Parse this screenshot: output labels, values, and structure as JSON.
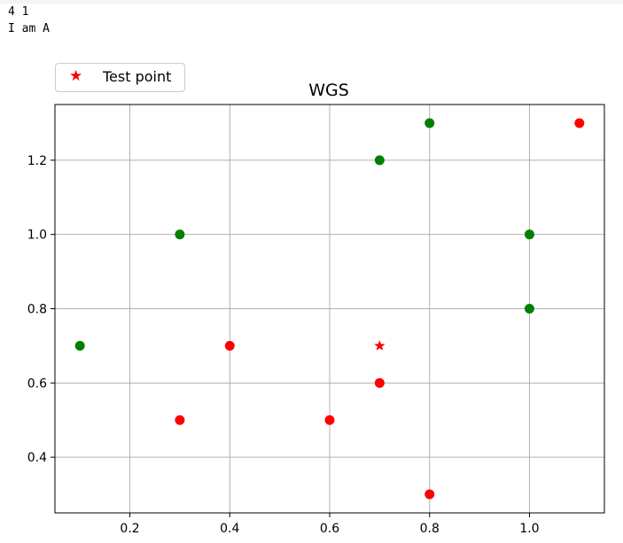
{
  "console": {
    "lines": [
      "4 1",
      "I am A"
    ]
  },
  "legend": {
    "entries": [
      {
        "label": "Test point",
        "marker": "star",
        "color": "#ff0000"
      }
    ]
  },
  "colors": {
    "green": "#008000",
    "red": "#ff0000",
    "grid": "#b0b0b0"
  },
  "chart_data": {
    "type": "scatter",
    "title": "WGS",
    "xlabel": "",
    "ylabel": "",
    "xlim": [
      0.05,
      1.15
    ],
    "ylim": [
      0.25,
      1.35
    ],
    "xticks": [
      0.2,
      0.4,
      0.6,
      0.8,
      1.0
    ],
    "xtick_labels": [
      "0.2",
      "0.4",
      "0.6",
      "0.8",
      "1.0"
    ],
    "yticks": [
      0.4,
      0.6,
      0.8,
      1.0,
      1.2
    ],
    "ytick_labels": [
      "0.4",
      "0.6",
      "0.8",
      "1.0",
      "1.2"
    ],
    "grid": true,
    "legend_position": "above-left",
    "series": [
      {
        "color": "#008000",
        "marker": "circle",
        "points": [
          [
            0.1,
            0.7
          ],
          [
            0.3,
            1.0
          ],
          [
            0.7,
            1.2
          ],
          [
            0.8,
            1.3
          ],
          [
            1.0,
            1.0
          ],
          [
            1.0,
            0.8
          ]
        ]
      },
      {
        "color": "#ff0000",
        "marker": "circle",
        "points": [
          [
            0.3,
            0.5
          ],
          [
            0.4,
            0.7
          ],
          [
            0.6,
            0.5
          ],
          [
            0.7,
            0.6
          ],
          [
            0.8,
            0.3
          ],
          [
            1.1,
            1.3
          ]
        ]
      },
      {
        "name": "Test point",
        "color": "#ff0000",
        "marker": "star",
        "points": [
          [
            0.7,
            0.7
          ]
        ]
      }
    ]
  }
}
